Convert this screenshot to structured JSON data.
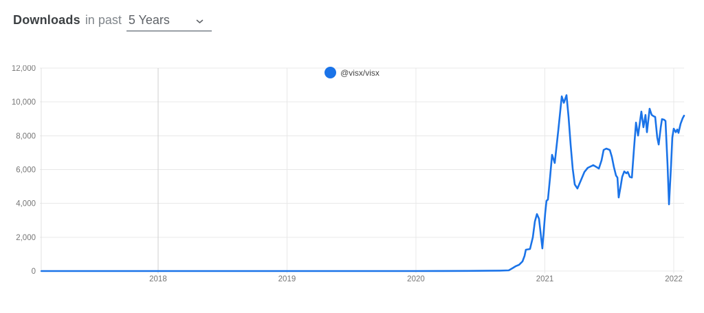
{
  "header": {
    "title": "Downloads",
    "subtitle": "in past",
    "range_value": "5 Years"
  },
  "legend": {
    "label": "@visx/visx",
    "dot_color": "#1a73e8"
  },
  "colors": {
    "series_line": "#1a73e8",
    "grid": "#e8e8e8",
    "grid_emphasis": "#cfcfcf",
    "left_boundary": "#e0e0e0",
    "axis_text": "#757575"
  },
  "chart_data": {
    "type": "line",
    "title": "Downloads in past 5 Years",
    "xlabel": "",
    "ylabel": "",
    "grid": true,
    "legend_position": "top-center",
    "x_range": [
      2017.083,
      2022.08
    ],
    "ylim": [
      0,
      12000
    ],
    "x_ticks": [
      {
        "v": 2018,
        "label": "2018",
        "emphasis": true
      },
      {
        "v": 2019,
        "label": "2019",
        "emphasis": false
      },
      {
        "v": 2020,
        "label": "2020",
        "emphasis": false
      },
      {
        "v": 2021,
        "label": "2021",
        "emphasis": false
      },
      {
        "v": 2022,
        "label": "2022",
        "emphasis": false
      }
    ],
    "y_ticks": [
      {
        "v": 0,
        "label": "0"
      },
      {
        "v": 2000,
        "label": "2,000"
      },
      {
        "v": 4000,
        "label": "4,000"
      },
      {
        "v": 6000,
        "label": "6,000"
      },
      {
        "v": 8000,
        "label": "8,000"
      },
      {
        "v": 10000,
        "label": "10,000"
      },
      {
        "v": 12000,
        "label": "12,000"
      }
    ],
    "series": [
      {
        "name": "@visx/visx",
        "color": "#1a73e8",
        "points": [
          [
            2017.095,
            0
          ],
          [
            2017.3,
            0
          ],
          [
            2017.6,
            0
          ],
          [
            2017.9,
            0
          ],
          [
            2018.2,
            0
          ],
          [
            2018.5,
            0
          ],
          [
            2018.8,
            0
          ],
          [
            2019.1,
            0
          ],
          [
            2019.4,
            0
          ],
          [
            2019.7,
            0
          ],
          [
            2020.0,
            0
          ],
          [
            2020.2,
            5
          ],
          [
            2020.4,
            10
          ],
          [
            2020.55,
            15
          ],
          [
            2020.65,
            25
          ],
          [
            2020.72,
            40
          ],
          [
            2020.747,
            160
          ],
          [
            2020.773,
            280
          ],
          [
            2020.8,
            370
          ],
          [
            2020.827,
            570
          ],
          [
            2020.843,
            900
          ],
          [
            2020.853,
            1260
          ],
          [
            2020.885,
            1300
          ],
          [
            2020.907,
            1990
          ],
          [
            2020.923,
            2930
          ],
          [
            2020.939,
            3370
          ],
          [
            2020.955,
            3090
          ],
          [
            2020.981,
            1340
          ],
          [
            2021.003,
            3420
          ],
          [
            2021.013,
            4150
          ],
          [
            2021.024,
            4230
          ],
          [
            2021.04,
            5500
          ],
          [
            2021.056,
            6870
          ],
          [
            2021.077,
            6390
          ],
          [
            2021.104,
            8300
          ],
          [
            2021.131,
            10330
          ],
          [
            2021.147,
            9950
          ],
          [
            2021.168,
            10400
          ],
          [
            2021.184,
            9110
          ],
          [
            2021.2,
            7480
          ],
          [
            2021.216,
            6060
          ],
          [
            2021.232,
            5120
          ],
          [
            2021.253,
            4880
          ],
          [
            2021.28,
            5370
          ],
          [
            2021.307,
            5860
          ],
          [
            2021.333,
            6100
          ],
          [
            2021.376,
            6260
          ],
          [
            2021.403,
            6140
          ],
          [
            2021.419,
            6060
          ],
          [
            2021.44,
            6550
          ],
          [
            2021.456,
            7160
          ],
          [
            2021.477,
            7240
          ],
          [
            2021.504,
            7160
          ],
          [
            2021.52,
            6750
          ],
          [
            2021.536,
            6140
          ],
          [
            2021.552,
            5650
          ],
          [
            2021.563,
            5530
          ],
          [
            2021.573,
            4350
          ],
          [
            2021.589,
            5040
          ],
          [
            2021.6,
            5570
          ],
          [
            2021.616,
            5890
          ],
          [
            2021.632,
            5780
          ],
          [
            2021.643,
            5860
          ],
          [
            2021.659,
            5570
          ],
          [
            2021.675,
            5530
          ],
          [
            2021.691,
            7200
          ],
          [
            2021.707,
            8780
          ],
          [
            2021.723,
            8010
          ],
          [
            2021.739,
            8900
          ],
          [
            2021.749,
            9430
          ],
          [
            2021.765,
            8500
          ],
          [
            2021.781,
            9230
          ],
          [
            2021.792,
            8210
          ],
          [
            2021.813,
            9600
          ],
          [
            2021.829,
            9230
          ],
          [
            2021.845,
            9150
          ],
          [
            2021.856,
            9110
          ],
          [
            2021.872,
            7890
          ],
          [
            2021.883,
            7480
          ],
          [
            2021.899,
            8500
          ],
          [
            2021.909,
            8980
          ],
          [
            2021.925,
            8950
          ],
          [
            2021.936,
            8870
          ],
          [
            2021.952,
            6260
          ],
          [
            2021.963,
            3940
          ],
          [
            2021.979,
            6260
          ],
          [
            2021.989,
            7890
          ],
          [
            2022.0,
            8420
          ],
          [
            2022.016,
            8210
          ],
          [
            2022.027,
            8370
          ],
          [
            2022.037,
            8170
          ],
          [
            2022.053,
            8700
          ],
          [
            2022.069,
            9030
          ],
          [
            2022.08,
            9190
          ]
        ]
      }
    ]
  }
}
